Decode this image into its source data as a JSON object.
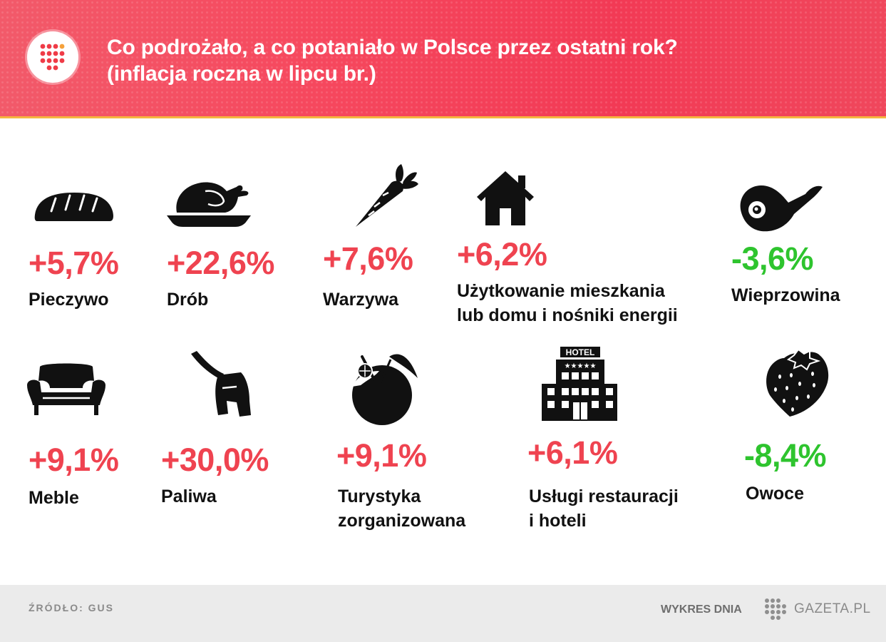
{
  "header": {
    "title_line1": "Co podrożało, a co potaniało w Polsce przez ostatni rok?",
    "title_line2": "(inflacja roczna w lipcu br.)",
    "accent_color": "#f24a5e",
    "highlight_color": "#f5b640"
  },
  "items": [
    {
      "value": "+5,7%",
      "label": "Pieczywo",
      "icon": "bread-icon",
      "direction": "up"
    },
    {
      "value": "+22,6%",
      "label": "Drób",
      "icon": "roast-chicken-icon",
      "direction": "up"
    },
    {
      "value": "+7,6%",
      "label": "Warzywa",
      "icon": "carrot-icon",
      "direction": "up"
    },
    {
      "value": "+6,2%",
      "label_line1": "Użytkowanie mieszkania",
      "label_line2": "lub domu i nośniki energii",
      "icon": "house-icon",
      "direction": "up"
    },
    {
      "value": "-3,6%",
      "label": "Wieprzowina",
      "icon": "ham-icon",
      "direction": "down"
    },
    {
      "value": "+9,1%",
      "label": "Meble",
      "icon": "armchair-icon",
      "direction": "up"
    },
    {
      "value": "+30,0%",
      "label": "Paliwa",
      "icon": "fuel-nozzle-icon",
      "direction": "up"
    },
    {
      "value": "+9,1%",
      "label_line1": "Turystyka",
      "label_line2": "zorganizowana",
      "icon": "coconut-drink-icon",
      "direction": "up"
    },
    {
      "value": "+6,1%",
      "label_line1": "Usługi restauracji",
      "label_line2": "i hoteli",
      "icon": "hotel-icon",
      "hotel_sign": "HOTEL",
      "direction": "up"
    },
    {
      "value": "-8,4%",
      "label": "Owoce",
      "icon": "strawberry-icon",
      "direction": "down"
    }
  ],
  "colors": {
    "increase": "#ef4350",
    "decrease": "#2ec42e"
  },
  "footer": {
    "source": "ŹRÓDŁO: GUS",
    "series": "WYKRES DNIA",
    "brand": "GAZETA.PL"
  }
}
